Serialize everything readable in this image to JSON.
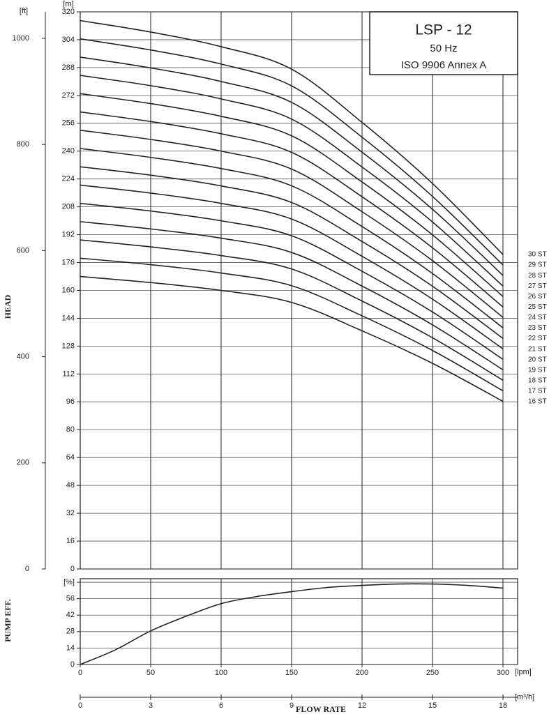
{
  "chart_data": [
    {
      "type": "line",
      "title": "LSP - 12",
      "subtitle": "50 Hz",
      "annotation": "ISO 9906 Annex A",
      "ylabel": "HEAD",
      "yunit": "[m]",
      "y2unit": "[ft]",
      "x": [
        0,
        50,
        100,
        150,
        200,
        250,
        300
      ],
      "xlim": [
        0,
        310
      ],
      "xticks": [
        0,
        50,
        100,
        150,
        200,
        250,
        300
      ],
      "ylim": [
        0,
        320
      ],
      "yticks": [
        0,
        16,
        32,
        48,
        64,
        80,
        96,
        112,
        128,
        144,
        160,
        176,
        192,
        208,
        224,
        240,
        256,
        272,
        288,
        304,
        320
      ],
      "y2lim": [
        0,
        1049.9
      ],
      "y2ticks": [
        0,
        200,
        400,
        600,
        800,
        1000
      ],
      "grid": true,
      "series": [
        {
          "name": "16 ST",
          "color": "#222",
          "values": [
            168,
            164.5,
            160,
            153.1,
            136.8,
            118.1,
            96.3
          ]
        },
        {
          "name": "17 ST",
          "color": "#222",
          "values": [
            178.5,
            174.8,
            170,
            162.7,
            145.4,
            125.5,
            102.3
          ]
        },
        {
          "name": "18 ST",
          "color": "#222",
          "values": [
            189,
            185,
            180,
            172.3,
            153.9,
            132.8,
            108.4
          ]
        },
        {
          "name": "19 ST",
          "color": "#222",
          "values": [
            199.5,
            195.3,
            190,
            181.8,
            162.5,
            140.2,
            114.4
          ]
        },
        {
          "name": "20 ST",
          "color": "#222",
          "values": [
            210,
            205.6,
            200,
            191.4,
            171,
            147.6,
            120.4
          ]
        },
        {
          "name": "21 ST",
          "color": "#222",
          "values": [
            220.5,
            215.9,
            210,
            201,
            179.6,
            155,
            126.4
          ]
        },
        {
          "name": "22 ST",
          "color": "#222",
          "values": [
            231,
            226.2,
            220,
            210.5,
            188.1,
            162.4,
            132.4
          ]
        },
        {
          "name": "23 ST",
          "color": "#222",
          "values": [
            241.5,
            236.4,
            230,
            220.1,
            196.7,
            169.7,
            138.5
          ]
        },
        {
          "name": "24 ST",
          "color": "#222",
          "values": [
            252,
            246.7,
            240,
            229.7,
            205.2,
            177.1,
            144.5
          ]
        },
        {
          "name": "25 ST",
          "color": "#222",
          "values": [
            262.5,
            257,
            250,
            239.3,
            213.8,
            184.5,
            150.5
          ]
        },
        {
          "name": "26 ST",
          "color": "#222",
          "values": [
            273,
            267.3,
            260,
            248.8,
            222.3,
            191.9,
            156.5
          ]
        },
        {
          "name": "27 ST",
          "color": "#222",
          "values": [
            283.5,
            277.6,
            270,
            258.4,
            230.9,
            199.3,
            162.5
          ]
        },
        {
          "name": "28 ST",
          "color": "#222",
          "values": [
            294,
            287.8,
            280,
            268,
            239.4,
            206.6,
            168.6
          ]
        },
        {
          "name": "29 ST",
          "color": "#222",
          "values": [
            304.5,
            298.1,
            290,
            277.5,
            248,
            214,
            174.6
          ]
        },
        {
          "name": "30 ST",
          "color": "#222",
          "values": [
            315,
            308.4,
            300,
            287.1,
            256.5,
            221.4,
            180.6
          ]
        }
      ]
    },
    {
      "type": "line",
      "ylabel": "PUMP EFF.",
      "xlabel": "FLOW RATE",
      "xunit": "[lpm]",
      "x2unit": "[m³/h]",
      "x": [
        0,
        25,
        50,
        75,
        100,
        125,
        150,
        175,
        200,
        225,
        250,
        275,
        300
      ],
      "xlim": [
        0,
        310
      ],
      "xticks": [
        0,
        50,
        100,
        150,
        200,
        250,
        300
      ],
      "x2lim": [
        0,
        18.6
      ],
      "x2ticks": [
        0,
        3,
        6,
        9,
        12,
        15,
        18
      ],
      "ylim": [
        0,
        73
      ],
      "yticks": [
        0,
        14,
        28,
        42,
        56,
        {
          "value": 70,
          "label": "[%]"
        }
      ],
      "grid": true,
      "series": [
        {
          "name": null,
          "color": "#222",
          "values": [
            0,
            12.5,
            28.6,
            41,
            51.8,
            57.8,
            62,
            65.5,
            67.3,
            68.5,
            68.5,
            67.3,
            65
          ]
        }
      ]
    }
  ]
}
